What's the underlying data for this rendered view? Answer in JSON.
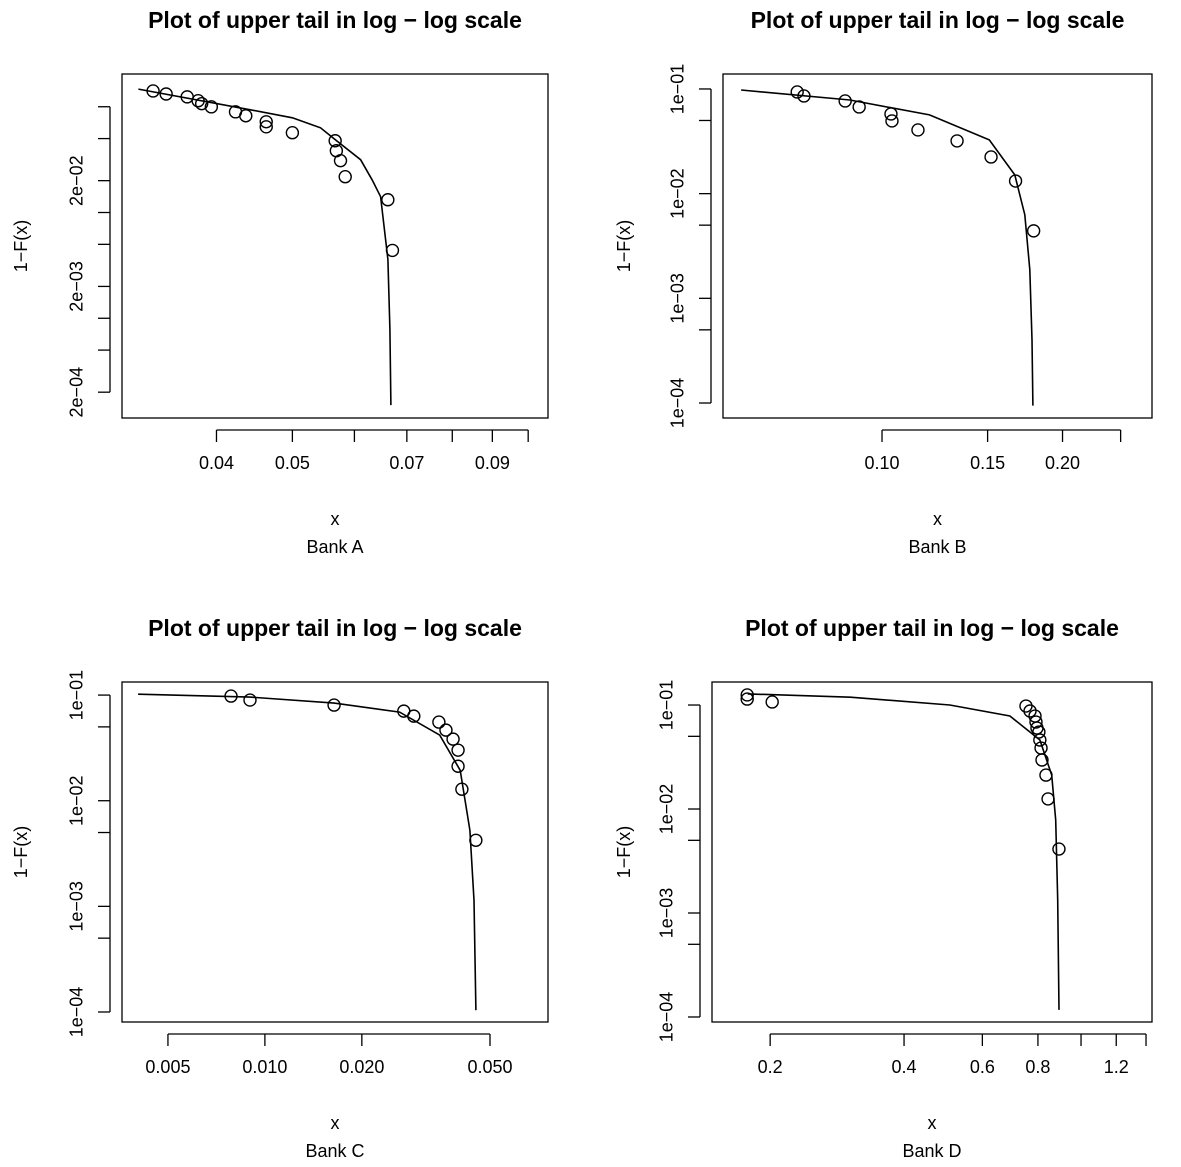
{
  "chart_data": [
    {
      "type": "scatter",
      "title": "Plot of upper tail in log − log scale",
      "xlabel": "x",
      "subtitle": "Bank A",
      "ylabel": "1−F(x)",
      "log_x": true,
      "log_y": true,
      "color": "#000000",
      "xlim": [
        0.0303,
        0.106
      ],
      "ylim": [
        0.000114,
        0.204
      ],
      "xticks": [
        0.04,
        0.05,
        {
          "value": 0.06,
          "label": null
        },
        0.07,
        {
          "value": 0.08,
          "label": null
        },
        0.09,
        {
          "value": 0.1,
          "label": null
        }
      ],
      "yticks": [
        {
          "value": 0.1,
          "label": null
        },
        {
          "value": 0.05,
          "label": null
        },
        {
          "value": 0.02,
          "label": "2e−02"
        },
        {
          "value": 0.01,
          "label": null
        },
        {
          "value": 0.005,
          "label": null
        },
        {
          "value": 0.002,
          "label": "2e−03"
        },
        {
          "value": 0.001,
          "label": null
        },
        {
          "value": 0.0005,
          "label": null
        },
        {
          "value": 0.0002,
          "label": "2e−04"
        }
      ],
      "x": [
        0.0332,
        0.0345,
        0.0367,
        0.0379,
        0.0383,
        0.0394,
        0.0423,
        0.0436,
        0.0463,
        0.0463,
        0.05,
        0.0567,
        0.0569,
        0.0576,
        0.0584,
        0.0662,
        0.0671
      ],
      "y": [
        0.141,
        0.132,
        0.124,
        0.114,
        0.107,
        0.0998,
        0.0895,
        0.0821,
        0.0721,
        0.0646,
        0.0568,
        0.0477,
        0.0384,
        0.0309,
        0.0218,
        0.0132,
        0.00438
      ],
      "fit": {
        "x": [
          0.0318,
          0.0442,
          0.05,
          0.0543,
          0.0567,
          0.0611,
          0.0632,
          0.0648,
          0.0662,
          0.0666,
          0.0668
        ],
        "y": [
          0.147,
          0.0936,
          0.0786,
          0.0632,
          0.0489,
          0.0316,
          0.0204,
          0.0141,
          0.0036,
          0.000789,
          0.000151
        ]
      }
    },
    {
      "type": "scatter",
      "title": "Plot of upper tail in log − log scale",
      "xlabel": "x",
      "subtitle": "Bank B",
      "ylabel": "1−F(x)",
      "log_x": true,
      "log_y": true,
      "color": "#000000",
      "xlim": [
        0.0543,
        0.282
      ],
      "ylim": [
        7.19e-05,
        0.139
      ],
      "xticks": [
        {
          "value": 0.1,
          "label": "0.10"
        },
        0.15,
        {
          "value": 0.2,
          "label": "0.20"
        },
        {
          "value": 0.25,
          "label": null
        }
      ],
      "yticks": [
        {
          "value": 0.1,
          "label": "1e−01"
        },
        {
          "value": 0.05,
          "label": null
        },
        {
          "value": 0.01,
          "label": "1e−02"
        },
        {
          "value": 0.005,
          "label": null
        },
        {
          "value": 0.001,
          "label": "1e−03"
        },
        {
          "value": 0.0005,
          "label": null
        },
        {
          "value": 0.0001,
          "label": "1e−04"
        }
      ],
      "x": [
        0.0722,
        0.0741,
        0.0868,
        0.0916,
        0.1035,
        0.1039,
        0.1148,
        0.1334,
        0.152,
        0.167,
        0.179
      ],
      "y": [
        0.0936,
        0.0857,
        0.0768,
        0.0673,
        0.0577,
        0.0495,
        0.0406,
        0.0319,
        0.0224,
        0.0132,
        0.00441
      ],
      "fit": {
        "x": [
          0.0582,
          0.0884,
          0.12,
          0.151,
          0.1665,
          0.173,
          0.1764,
          0.1779,
          0.1785
        ],
        "y": [
          0.0978,
          0.0785,
          0.0565,
          0.0326,
          0.0151,
          0.0063,
          0.00188,
          0.000403,
          9.45e-05
        ]
      }
    },
    {
      "type": "scatter",
      "title": "Plot of upper tail in log − log scale",
      "xlabel": "x",
      "subtitle": "Bank C",
      "ylabel": "1−F(x)",
      "log_x": true,
      "log_y": true,
      "color": "#000000",
      "xlim": [
        0.0036,
        0.0757
      ],
      "ylim": [
        8.04e-05,
        0.133
      ],
      "xticks": [
        0.005,
        {
          "value": 0.01,
          "label": "0.010"
        },
        {
          "value": 0.02,
          "label": "0.020"
        },
        {
          "value": 0.05,
          "label": "0.050"
        }
      ],
      "yticks": [
        {
          "value": 0.1,
          "label": "1e−01"
        },
        {
          "value": 0.05,
          "label": null
        },
        {
          "value": 0.01,
          "label": "1e−02"
        },
        {
          "value": 0.005,
          "label": null
        },
        {
          "value": 0.001,
          "label": "1e−03"
        },
        {
          "value": 0.0005,
          "label": null
        },
        {
          "value": 0.0001,
          "label": "1e−04"
        }
      ],
      "x": [
        0.00785,
        0.00899,
        0.0164,
        0.027,
        0.029,
        0.0347,
        0.0365,
        0.0384,
        0.0398,
        0.0398,
        0.0409,
        0.0452
      ],
      "y": [
        0.0978,
        0.0897,
        0.0804,
        0.0705,
        0.0632,
        0.0555,
        0.0466,
        0.0383,
        0.0301,
        0.0212,
        0.01285,
        0.00422
      ],
      "fit": {
        "x": [
          0.00404,
          0.00899,
          0.0164,
          0.0262,
          0.0349,
          0.0404,
          0.0433,
          0.0446,
          0.0452
        ],
        "y": [
          0.102,
          0.0957,
          0.084,
          0.069,
          0.0418,
          0.0194,
          0.00525,
          0.00114,
          0.000104
        ]
      }
    },
    {
      "type": "scatter",
      "title": "Plot of upper tail in log − log scale",
      "xlabel": "x",
      "subtitle": "Bank D",
      "ylabel": "1−F(x)",
      "log_x": true,
      "log_y": true,
      "color": "#000000",
      "xlim": [
        0.148,
        1.444
      ],
      "ylim": [
        8.95e-05,
        0.1665
      ],
      "xticks": [
        0.2,
        0.4,
        0.6,
        0.8,
        {
          "value": 1.0,
          "label": null
        },
        1.2,
        {
          "value": 1.4,
          "label": null
        }
      ],
      "yticks": [
        {
          "value": 0.1,
          "label": "1e−01"
        },
        {
          "value": 0.05,
          "label": null
        },
        {
          "value": 0.01,
          "label": "1e−02"
        },
        {
          "value": 0.005,
          "label": null
        },
        {
          "value": 0.001,
          "label": "1e−03"
        },
        {
          "value": 0.0005,
          "label": null
        },
        {
          "value": 0.0001,
          "label": "1e−04"
        }
      ],
      "x": [
        0.1776,
        0.1776,
        0.2021,
        0.752,
        0.768,
        0.788,
        0.792,
        0.796,
        0.804,
        0.808,
        0.813,
        0.817,
        0.834,
        0.843,
        0.892
      ],
      "y": [
        0.125,
        0.114,
        0.107,
        0.0978,
        0.0876,
        0.0784,
        0.0686,
        0.0601,
        0.055,
        0.0461,
        0.0386,
        0.0296,
        0.0212,
        0.0125,
        0.00412
      ],
      "fit": {
        "x": [
          0.178,
          0.303,
          0.507,
          0.692,
          0.808,
          0.859,
          0.877,
          0.886,
          0.892
        ],
        "y": [
          0.128,
          0.119,
          0.1,
          0.0784,
          0.0461,
          0.0212,
          0.00786,
          0.00134,
          0.000117
        ]
      }
    }
  ]
}
